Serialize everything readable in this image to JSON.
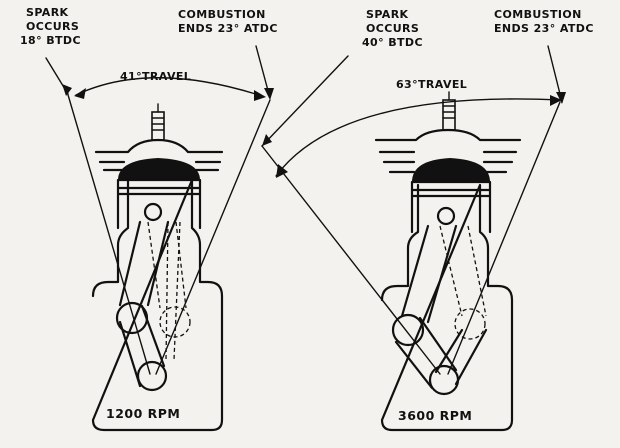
{
  "left": {
    "spark": [
      "SPARK",
      "OCCURS",
      "18° BTDC"
    ],
    "combustion": [
      "COMBUSTION",
      "ENDS 23° ATDC"
    ],
    "travel": "41°TRAVEL",
    "rpm": "1200 RPM"
  },
  "right": {
    "spark": [
      "SPARK",
      "OCCURS",
      "40° BTDC"
    ],
    "combustion": [
      "COMBUSTION",
      "ENDS 23° ATDC"
    ],
    "travel": "63°TRAVEL",
    "rpm": "3600 RPM"
  }
}
